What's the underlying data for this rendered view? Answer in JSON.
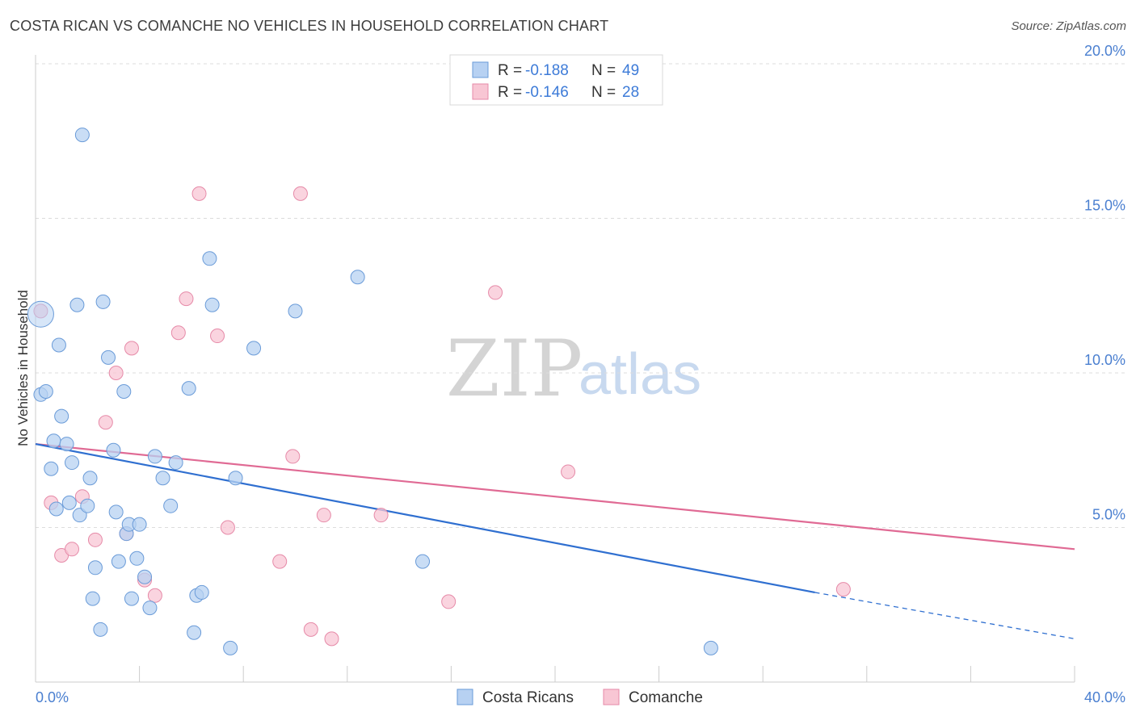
{
  "title": "COSTA RICAN VS COMANCHE NO VEHICLES IN HOUSEHOLD CORRELATION CHART",
  "source": "Source: ZipAtlas.com",
  "watermark": {
    "zip": "ZIP",
    "atlas": "atlas"
  },
  "colors": {
    "blue_fill": "#b7d1f2",
    "blue_stroke": "#6a9bd8",
    "blue_line": "#2f6fd0",
    "pink_fill": "#f8c6d4",
    "pink_stroke": "#e68aa8",
    "pink_line": "#e06a94",
    "grid": "#dcdcdc",
    "axis_text": "#4a7fd0"
  },
  "chart_data": {
    "type": "scatter",
    "title": "COSTA RICAN VS COMANCHE NO VEHICLES IN HOUSEHOLD CORRELATION CHART",
    "xlabel": "",
    "ylabel": "No Vehicles in Household",
    "xlim": [
      0,
      40
    ],
    "ylim": [
      0,
      20.5
    ],
    "x_tick_labels": [
      "0.0%",
      "40.0%"
    ],
    "y_ticks": [
      5,
      10,
      15,
      20
    ],
    "y_tick_labels": [
      "5.0%",
      "10.0%",
      "15.0%",
      "20.0%"
    ],
    "series": [
      {
        "name": "Costa Ricans",
        "R": "-0.188",
        "N": "49",
        "trend": {
          "x0": 0,
          "y0": 7.7,
          "x1": 30.0,
          "y1": 2.9,
          "dashed_to_x": 40,
          "dashed_to_y": 1.4
        },
        "points": [
          [
            0.2,
            11.9
          ],
          [
            0.2,
            9.3
          ],
          [
            0.4,
            9.4
          ],
          [
            0.6,
            6.9
          ],
          [
            0.7,
            7.8
          ],
          [
            0.8,
            5.6
          ],
          [
            0.9,
            10.9
          ],
          [
            1.0,
            8.6
          ],
          [
            1.2,
            7.7
          ],
          [
            1.3,
            5.8
          ],
          [
            1.4,
            7.1
          ],
          [
            1.6,
            12.2
          ],
          [
            1.7,
            5.4
          ],
          [
            1.8,
            17.7
          ],
          [
            2.0,
            5.7
          ],
          [
            2.1,
            6.6
          ],
          [
            2.2,
            2.7
          ],
          [
            2.3,
            3.7
          ],
          [
            2.5,
            1.7
          ],
          [
            2.6,
            12.3
          ],
          [
            2.8,
            10.5
          ],
          [
            3.0,
            7.5
          ],
          [
            3.1,
            5.5
          ],
          [
            3.2,
            3.9
          ],
          [
            3.4,
            9.4
          ],
          [
            3.5,
            4.8
          ],
          [
            3.6,
            5.1
          ],
          [
            3.7,
            2.7
          ],
          [
            3.9,
            4.0
          ],
          [
            4.0,
            5.1
          ],
          [
            4.2,
            3.4
          ],
          [
            4.4,
            2.4
          ],
          [
            4.6,
            7.3
          ],
          [
            4.9,
            6.6
          ],
          [
            5.2,
            5.7
          ],
          [
            5.4,
            7.1
          ],
          [
            5.9,
            9.5
          ],
          [
            6.1,
            1.6
          ],
          [
            6.2,
            2.8
          ],
          [
            6.4,
            2.9
          ],
          [
            6.7,
            13.7
          ],
          [
            6.8,
            12.2
          ],
          [
            7.5,
            1.1
          ],
          [
            7.7,
            6.6
          ],
          [
            8.4,
            10.8
          ],
          [
            10.0,
            12.0
          ],
          [
            12.4,
            13.1
          ],
          [
            14.9,
            3.9
          ],
          [
            26.0,
            1.1
          ]
        ]
      },
      {
        "name": "Comanche",
        "R": "-0.146",
        "N": "28",
        "trend": {
          "x0": 0,
          "y0": 7.7,
          "x1": 40,
          "y1": 4.3
        },
        "points": [
          [
            0.2,
            12.0
          ],
          [
            0.6,
            5.8
          ],
          [
            1.0,
            4.1
          ],
          [
            1.4,
            4.3
          ],
          [
            1.8,
            6.0
          ],
          [
            2.3,
            4.6
          ],
          [
            2.7,
            8.4
          ],
          [
            3.1,
            10.0
          ],
          [
            3.5,
            4.8
          ],
          [
            3.7,
            10.8
          ],
          [
            4.2,
            3.3
          ],
          [
            4.6,
            2.8
          ],
          [
            5.5,
            11.3
          ],
          [
            5.8,
            12.4
          ],
          [
            6.3,
            15.8
          ],
          [
            7.0,
            11.2
          ],
          [
            7.4,
            5.0
          ],
          [
            9.4,
            3.9
          ],
          [
            9.9,
            7.3
          ],
          [
            10.2,
            15.8
          ],
          [
            10.6,
            1.7
          ],
          [
            11.1,
            5.4
          ],
          [
            11.4,
            1.4
          ],
          [
            13.3,
            5.4
          ],
          [
            15.9,
            2.6
          ],
          [
            17.7,
            12.6
          ],
          [
            20.5,
            6.8
          ],
          [
            31.1,
            3.0
          ]
        ]
      }
    ]
  },
  "legend": {
    "r_label": "R =",
    "n_label": "N =",
    "rows": [
      {
        "r": "-0.188",
        "n": "49"
      },
      {
        "r": "-0.146",
        "n": "28"
      }
    ]
  },
  "bottom_legend": [
    {
      "label": "Costa Ricans"
    },
    {
      "label": "Comanche"
    }
  ]
}
